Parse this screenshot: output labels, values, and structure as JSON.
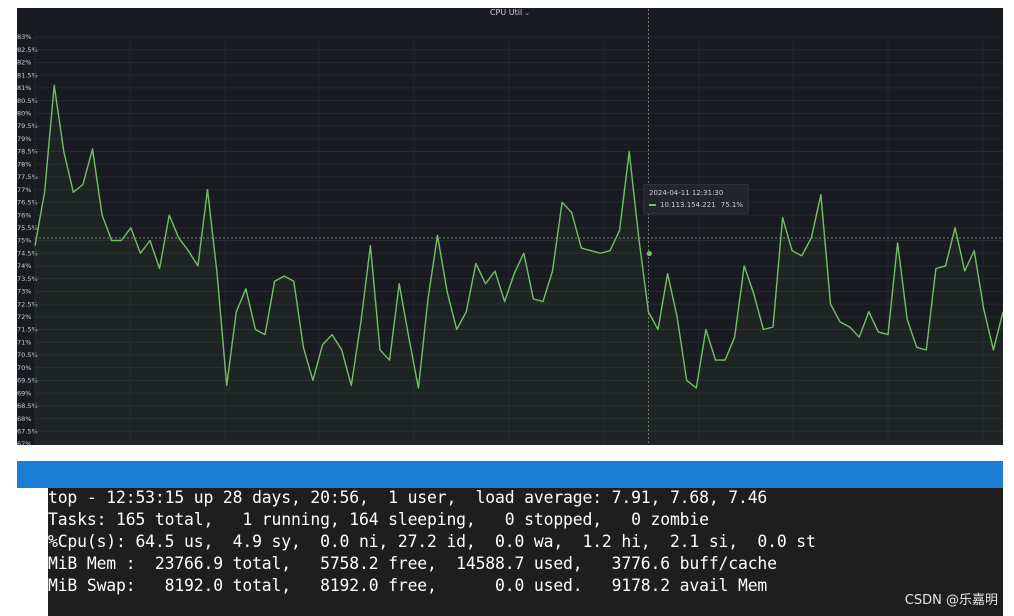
{
  "panel": {
    "title": "CPU Util",
    "title_caret": "⌄"
  },
  "chart_data": {
    "type": "line",
    "title": "CPU Util",
    "y_ticks": [
      "83%",
      "82.5%",
      "82%",
      "81.5%",
      "81%",
      "80.5%",
      "80%",
      "79.5%",
      "79%",
      "78.5%",
      "78%",
      "77.5%",
      "77%",
      "76.5%",
      "76%",
      "75.5%",
      "75%",
      "74.5%",
      "74%",
      "73.5%",
      "73%",
      "72.5%",
      "72%",
      "71.5%",
      "71%",
      "70.5%",
      "70%",
      "69.5%",
      "69%",
      "68.5%",
      "68%",
      "67.5%",
      "67%"
    ],
    "ylim": [
      67,
      83
    ],
    "grid": true,
    "legend": "none",
    "series": [
      {
        "color": "#73bf69",
        "values": [
          74.8,
          76.9,
          81.1,
          78.5,
          76.9,
          77.2,
          78.6,
          76,
          75,
          75,
          75.5,
          74.5,
          75,
          73.9,
          76,
          75.1,
          74.6,
          74,
          77,
          73.7,
          69.3,
          72.2,
          73.1,
          71.5,
          71.3,
          73.4,
          73.6,
          73.4,
          70.8,
          69.5,
          70.9,
          71.3,
          70.7,
          69.3,
          71.8,
          74.8,
          70.7,
          70.3,
          73.3,
          71.2,
          69.2,
          72.7,
          75.2,
          73,
          71.5,
          72.2,
          74.1,
          73.3,
          73.8,
          72.6,
          73.7,
          74.5,
          72.7,
          72.6,
          73.8,
          76.5,
          76.1,
          74.7,
          74.6,
          74.5,
          74.6,
          75.4,
          78.5,
          75.1,
          72.2,
          71.5,
          73.7,
          72,
          69.5,
          69.2,
          71.5,
          70.3,
          70.3,
          71.2,
          74,
          72.9,
          71.5,
          71.6,
          75.9,
          74.6,
          74.4,
          75.1,
          76.8,
          72.5,
          71.8,
          71.6,
          71.2,
          72.2,
          71.4,
          71.3,
          74.9,
          71.9,
          70.8,
          70.7,
          73.9,
          74,
          75.5,
          73.8,
          74.6,
          72.3,
          70.7,
          72.2
        ]
      }
    ],
    "cursor": {
      "value": 75.1
    }
  },
  "tooltip": {
    "time": "2024-04-11 12:31:30",
    "series": "10.113.154.221",
    "value": "75.1%"
  },
  "terminal": {
    "lines": [
      "top - 12:53:15 up 28 days, 20:56,  1 user,  load average: 7.91, 7.68, 7.46",
      "Tasks: 165 total,   1 running, 164 sleeping,   0 stopped,   0 zombie",
      "%Cpu(s): 64.5 us,  4.9 sy,  0.0 ni, 27.2 id,  0.0 wa,  1.2 hi,  2.1 si,  0.0 st",
      "MiB Mem :  23766.9 total,   5758.2 free,  14588.7 used,   3776.6 buff/cache",
      "MiB Swap:   8192.0 total,   8192.0 free,      0.0 used.   9178.2 avail Mem"
    ]
  },
  "watermark": "CSDN @乐嘉明"
}
